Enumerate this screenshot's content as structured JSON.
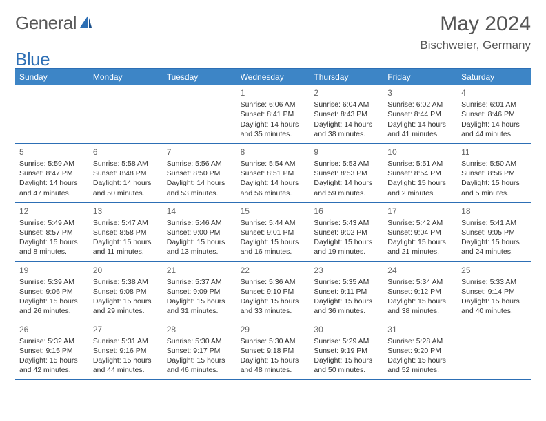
{
  "logo": {
    "text1": "General",
    "text2": "Blue"
  },
  "title": "May 2024",
  "location": "Bischweier, Germany",
  "colors": {
    "header_bar": "#3d85c6",
    "border": "#2d6fb5",
    "weekday_text": "#ffffff",
    "body_text": "#333333",
    "daynum_text": "#666666",
    "logo_gray": "#5a5a5a",
    "logo_blue": "#2d6fb5"
  },
  "weekdays": [
    "Sunday",
    "Monday",
    "Tuesday",
    "Wednesday",
    "Thursday",
    "Friday",
    "Saturday"
  ],
  "weeks": [
    [
      null,
      null,
      null,
      {
        "n": "1",
        "sr": "Sunrise: 6:06 AM",
        "ss": "Sunset: 8:41 PM",
        "d1": "Daylight: 14 hours",
        "d2": "and 35 minutes."
      },
      {
        "n": "2",
        "sr": "Sunrise: 6:04 AM",
        "ss": "Sunset: 8:43 PM",
        "d1": "Daylight: 14 hours",
        "d2": "and 38 minutes."
      },
      {
        "n": "3",
        "sr": "Sunrise: 6:02 AM",
        "ss": "Sunset: 8:44 PM",
        "d1": "Daylight: 14 hours",
        "d2": "and 41 minutes."
      },
      {
        "n": "4",
        "sr": "Sunrise: 6:01 AM",
        "ss": "Sunset: 8:46 PM",
        "d1": "Daylight: 14 hours",
        "d2": "and 44 minutes."
      }
    ],
    [
      {
        "n": "5",
        "sr": "Sunrise: 5:59 AM",
        "ss": "Sunset: 8:47 PM",
        "d1": "Daylight: 14 hours",
        "d2": "and 47 minutes."
      },
      {
        "n": "6",
        "sr": "Sunrise: 5:58 AM",
        "ss": "Sunset: 8:48 PM",
        "d1": "Daylight: 14 hours",
        "d2": "and 50 minutes."
      },
      {
        "n": "7",
        "sr": "Sunrise: 5:56 AM",
        "ss": "Sunset: 8:50 PM",
        "d1": "Daylight: 14 hours",
        "d2": "and 53 minutes."
      },
      {
        "n": "8",
        "sr": "Sunrise: 5:54 AM",
        "ss": "Sunset: 8:51 PM",
        "d1": "Daylight: 14 hours",
        "d2": "and 56 minutes."
      },
      {
        "n": "9",
        "sr": "Sunrise: 5:53 AM",
        "ss": "Sunset: 8:53 PM",
        "d1": "Daylight: 14 hours",
        "d2": "and 59 minutes."
      },
      {
        "n": "10",
        "sr": "Sunrise: 5:51 AM",
        "ss": "Sunset: 8:54 PM",
        "d1": "Daylight: 15 hours",
        "d2": "and 2 minutes."
      },
      {
        "n": "11",
        "sr": "Sunrise: 5:50 AM",
        "ss": "Sunset: 8:56 PM",
        "d1": "Daylight: 15 hours",
        "d2": "and 5 minutes."
      }
    ],
    [
      {
        "n": "12",
        "sr": "Sunrise: 5:49 AM",
        "ss": "Sunset: 8:57 PM",
        "d1": "Daylight: 15 hours",
        "d2": "and 8 minutes."
      },
      {
        "n": "13",
        "sr": "Sunrise: 5:47 AM",
        "ss": "Sunset: 8:58 PM",
        "d1": "Daylight: 15 hours",
        "d2": "and 11 minutes."
      },
      {
        "n": "14",
        "sr": "Sunrise: 5:46 AM",
        "ss": "Sunset: 9:00 PM",
        "d1": "Daylight: 15 hours",
        "d2": "and 13 minutes."
      },
      {
        "n": "15",
        "sr": "Sunrise: 5:44 AM",
        "ss": "Sunset: 9:01 PM",
        "d1": "Daylight: 15 hours",
        "d2": "and 16 minutes."
      },
      {
        "n": "16",
        "sr": "Sunrise: 5:43 AM",
        "ss": "Sunset: 9:02 PM",
        "d1": "Daylight: 15 hours",
        "d2": "and 19 minutes."
      },
      {
        "n": "17",
        "sr": "Sunrise: 5:42 AM",
        "ss": "Sunset: 9:04 PM",
        "d1": "Daylight: 15 hours",
        "d2": "and 21 minutes."
      },
      {
        "n": "18",
        "sr": "Sunrise: 5:41 AM",
        "ss": "Sunset: 9:05 PM",
        "d1": "Daylight: 15 hours",
        "d2": "and 24 minutes."
      }
    ],
    [
      {
        "n": "19",
        "sr": "Sunrise: 5:39 AM",
        "ss": "Sunset: 9:06 PM",
        "d1": "Daylight: 15 hours",
        "d2": "and 26 minutes."
      },
      {
        "n": "20",
        "sr": "Sunrise: 5:38 AM",
        "ss": "Sunset: 9:08 PM",
        "d1": "Daylight: 15 hours",
        "d2": "and 29 minutes."
      },
      {
        "n": "21",
        "sr": "Sunrise: 5:37 AM",
        "ss": "Sunset: 9:09 PM",
        "d1": "Daylight: 15 hours",
        "d2": "and 31 minutes."
      },
      {
        "n": "22",
        "sr": "Sunrise: 5:36 AM",
        "ss": "Sunset: 9:10 PM",
        "d1": "Daylight: 15 hours",
        "d2": "and 33 minutes."
      },
      {
        "n": "23",
        "sr": "Sunrise: 5:35 AM",
        "ss": "Sunset: 9:11 PM",
        "d1": "Daylight: 15 hours",
        "d2": "and 36 minutes."
      },
      {
        "n": "24",
        "sr": "Sunrise: 5:34 AM",
        "ss": "Sunset: 9:12 PM",
        "d1": "Daylight: 15 hours",
        "d2": "and 38 minutes."
      },
      {
        "n": "25",
        "sr": "Sunrise: 5:33 AM",
        "ss": "Sunset: 9:14 PM",
        "d1": "Daylight: 15 hours",
        "d2": "and 40 minutes."
      }
    ],
    [
      {
        "n": "26",
        "sr": "Sunrise: 5:32 AM",
        "ss": "Sunset: 9:15 PM",
        "d1": "Daylight: 15 hours",
        "d2": "and 42 minutes."
      },
      {
        "n": "27",
        "sr": "Sunrise: 5:31 AM",
        "ss": "Sunset: 9:16 PM",
        "d1": "Daylight: 15 hours",
        "d2": "and 44 minutes."
      },
      {
        "n": "28",
        "sr": "Sunrise: 5:30 AM",
        "ss": "Sunset: 9:17 PM",
        "d1": "Daylight: 15 hours",
        "d2": "and 46 minutes."
      },
      {
        "n": "29",
        "sr": "Sunrise: 5:30 AM",
        "ss": "Sunset: 9:18 PM",
        "d1": "Daylight: 15 hours",
        "d2": "and 48 minutes."
      },
      {
        "n": "30",
        "sr": "Sunrise: 5:29 AM",
        "ss": "Sunset: 9:19 PM",
        "d1": "Daylight: 15 hours",
        "d2": "and 50 minutes."
      },
      {
        "n": "31",
        "sr": "Sunrise: 5:28 AM",
        "ss": "Sunset: 9:20 PM",
        "d1": "Daylight: 15 hours",
        "d2": "and 52 minutes."
      },
      null
    ]
  ]
}
